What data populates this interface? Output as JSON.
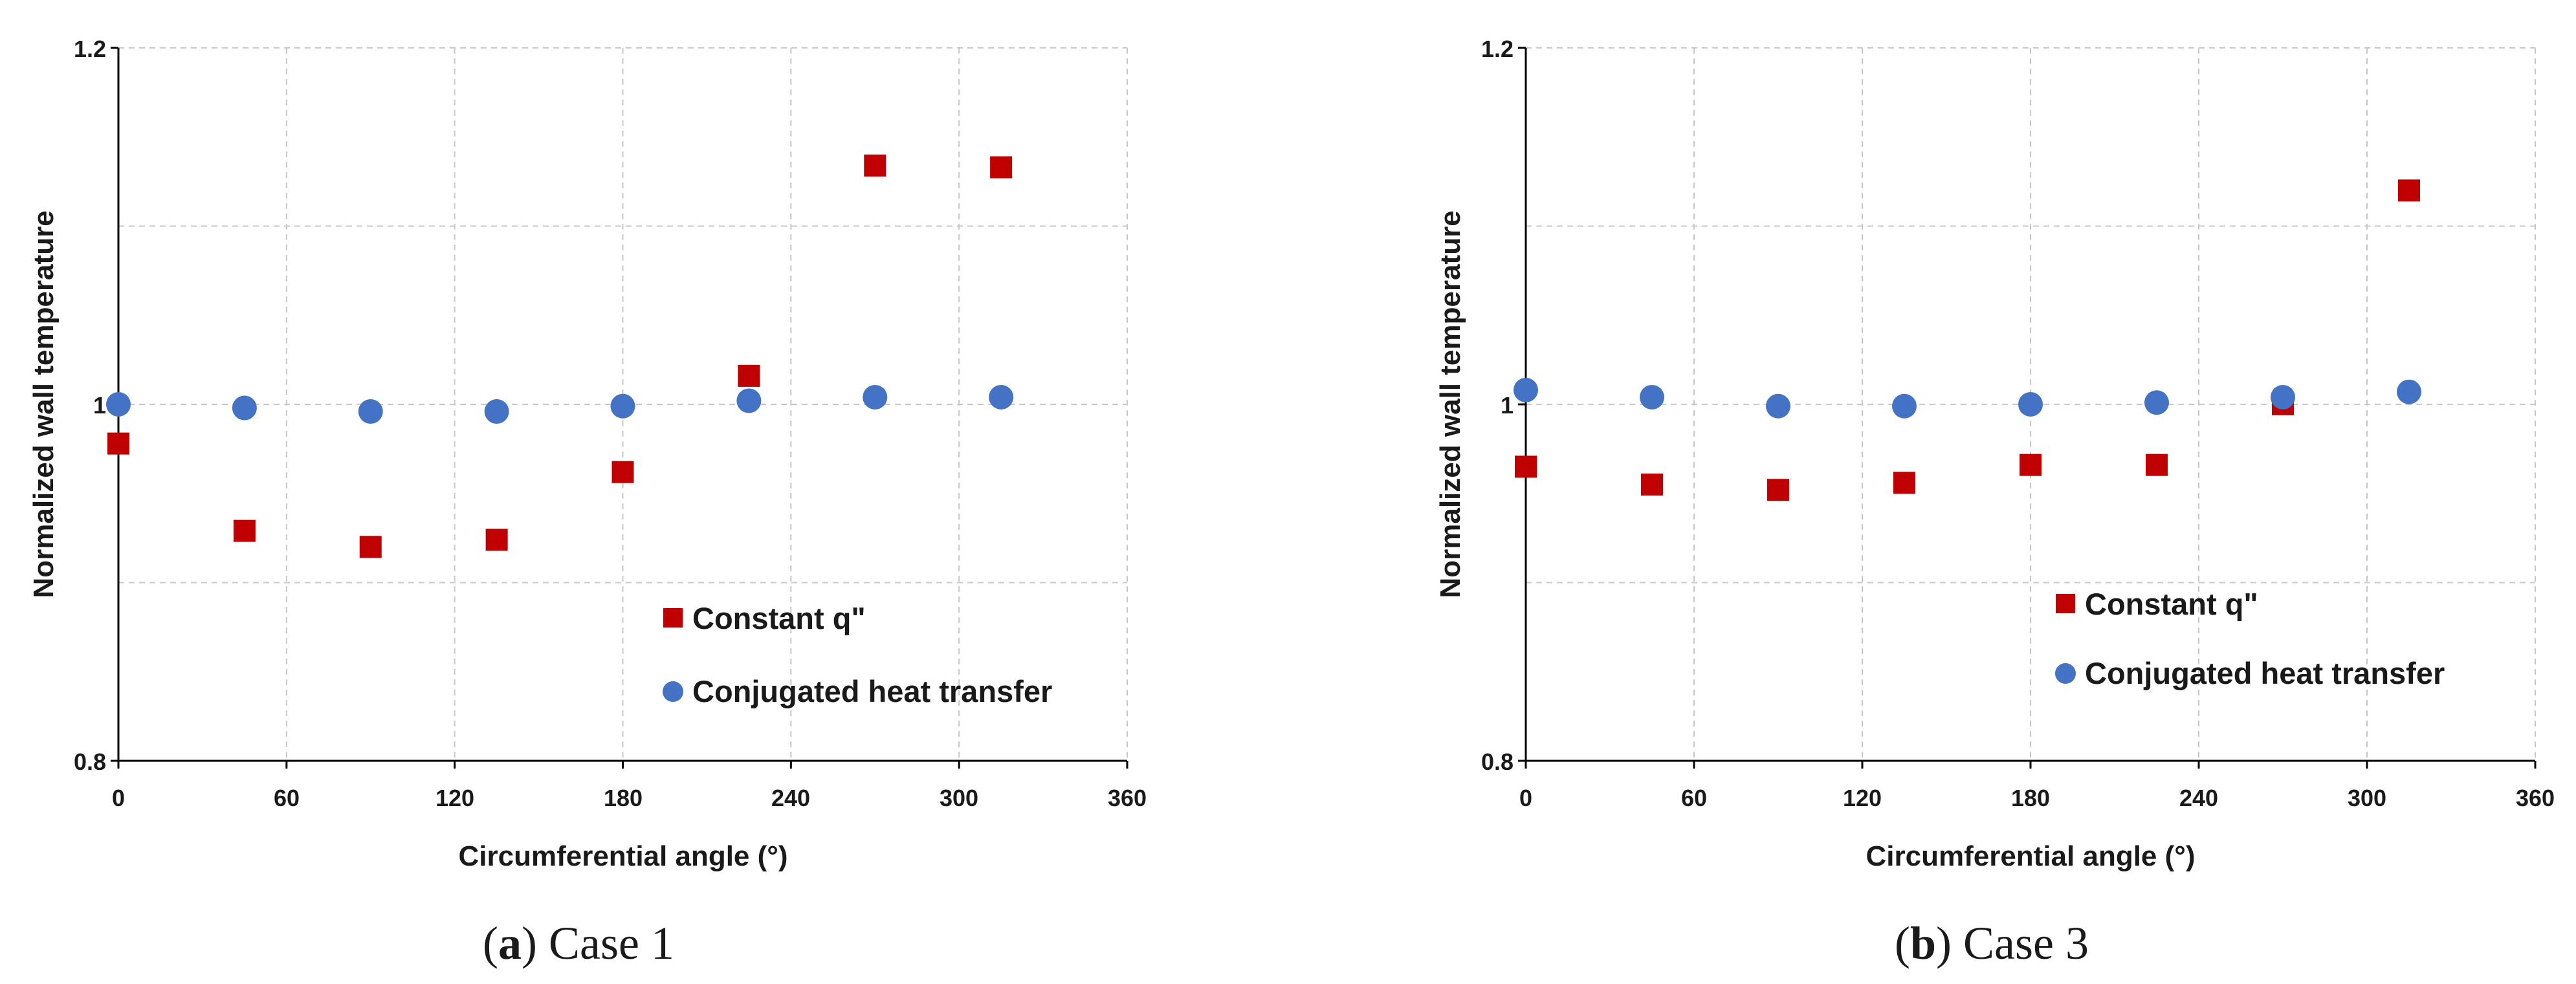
{
  "colors": {
    "constant": "#C00000",
    "conjugated": "#4472C4",
    "grid": "#c8c8c8",
    "axis": "#000000"
  },
  "panels": [
    {
      "caption_letter": "a",
      "caption_text": "Case 1",
      "chart_data": {
        "type": "scatter",
        "xlabel": "Circumferential angle (°)",
        "ylabel": "Normalized wall temperature",
        "xlim": [
          0,
          360
        ],
        "ylim": [
          0.8,
          1.2
        ],
        "xticks": [
          "0",
          "60",
          "120",
          "180",
          "240",
          "300",
          "360"
        ],
        "yticks": [
          "0.8",
          "1",
          "1.2"
        ],
        "grid": true,
        "legend_position": "lower-right",
        "series": [
          {
            "name": "Constant q\"",
            "marker": "square",
            "x": [
              0,
              45,
              90,
              135,
              180,
              225,
              270,
              315
            ],
            "y": [
              0.978,
              0.929,
              0.92,
              0.924,
              0.962,
              1.016,
              1.134,
              1.133
            ]
          },
          {
            "name": "Conjugated heat transfer",
            "marker": "circle",
            "x": [
              0,
              45,
              90,
              135,
              180,
              225,
              270,
              315
            ],
            "y": [
              1.0,
              0.998,
              0.996,
              0.996,
              0.999,
              1.002,
              1.004,
              1.004
            ]
          }
        ]
      }
    },
    {
      "caption_letter": "b",
      "caption_text": "Case 3",
      "chart_data": {
        "type": "scatter",
        "xlabel": "Circumferential angle (°)",
        "ylabel": "Normalized wall temperature",
        "xlim": [
          0,
          360
        ],
        "ylim": [
          0.8,
          1.2
        ],
        "xticks": [
          "0",
          "60",
          "120",
          "180",
          "240",
          "300",
          "360"
        ],
        "yticks": [
          "0.8",
          "1",
          "1.2"
        ],
        "grid": true,
        "legend_position": "lower-right",
        "series": [
          {
            "name": "Constant q\"",
            "marker": "square",
            "x": [
              0,
              45,
              90,
              135,
              180,
              225,
              270,
              315
            ],
            "y": [
              0.965,
              0.955,
              0.952,
              0.956,
              0.966,
              0.966,
              1.0,
              1.12
            ]
          },
          {
            "name": "Conjugated heat transfer",
            "marker": "circle",
            "x": [
              0,
              45,
              90,
              135,
              180,
              225,
              270,
              315
            ],
            "y": [
              1.008,
              1.004,
              0.999,
              0.999,
              1.0,
              1.001,
              1.004,
              1.007
            ]
          }
        ]
      }
    }
  ]
}
